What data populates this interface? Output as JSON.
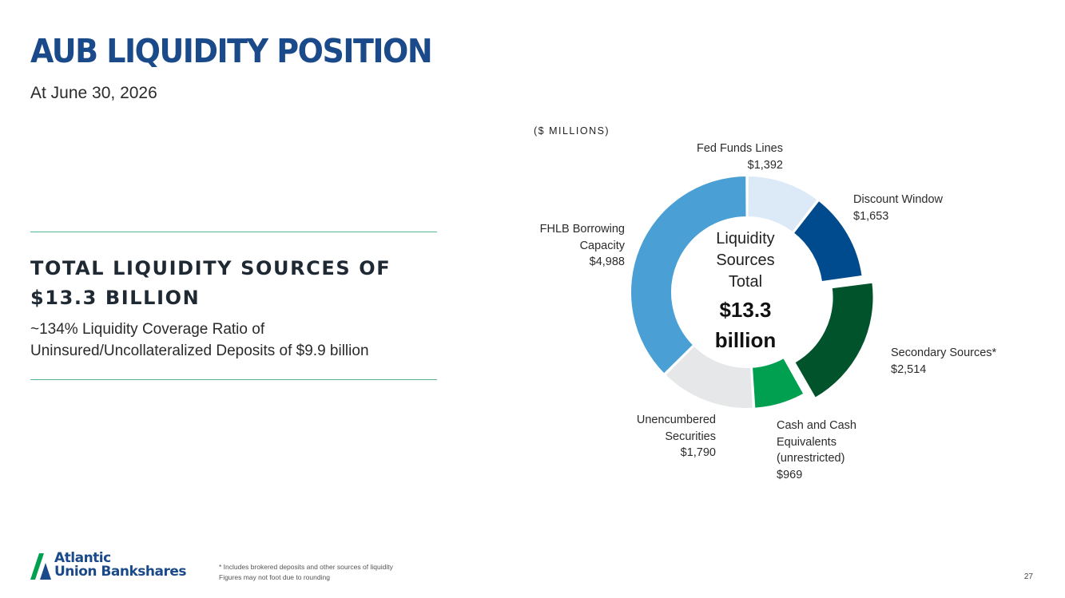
{
  "header": {
    "title": "AUB LIQUIDITY POSITION",
    "subtitle": "At June 30, 2026"
  },
  "summary": {
    "headline_line1": "TOTAL LIQUIDITY SOURCES OF",
    "headline_line2": "$13.3 BILLION",
    "ratio_line1": "~134% Liquidity Coverage Ratio of",
    "ratio_line2": "Uninsured/Uncollateralized Deposits of $9.9 billion"
  },
  "chart_data": {
    "type": "pie",
    "variant": "donut",
    "units_label": "($ MILLIONS)",
    "center": {
      "line1": "Liquidity",
      "line2": "Sources",
      "line3": "Total",
      "value_line1": "$13.3",
      "value_line2": "billion"
    },
    "slices": [
      {
        "name_lines": [
          "Fed Funds Lines"
        ],
        "value_label": "$1,392",
        "value": 1392,
        "color": "#dbeaf6",
        "exploded": false
      },
      {
        "name_lines": [
          "Discount Window"
        ],
        "value_label": "$1,653",
        "value": 1653,
        "color": "#004b8d",
        "exploded": false
      },
      {
        "name_lines": [
          "Secondary Sources*"
        ],
        "value_label": "$2,514",
        "value": 2514,
        "color": "#00532b",
        "exploded": true
      },
      {
        "name_lines": [
          "Cash and Cash",
          "Equivalents",
          "(unrestricted)"
        ],
        "value_label": "$969",
        "value": 969,
        "color": "#00a050",
        "exploded": false
      },
      {
        "name_lines": [
          "Unencumbered",
          "Securities"
        ],
        "value_label": "$1,790",
        "value": 1790,
        "color": "#e6e7e8",
        "exploded": false
      },
      {
        "name_lines": [
          "FHLB Borrowing",
          "Capacity"
        ],
        "value_label": "$4,988",
        "value": 4988,
        "color": "#4a9fd5",
        "exploded": false
      }
    ]
  },
  "footer": {
    "logo_line1": "Atlantic",
    "logo_line2": "Union Bankshares",
    "logo_color": "#1b4a8a",
    "logo_accent": "#00a050",
    "note1": "* Includes brokered deposits and other sources of liquidity",
    "note2": "Figures may not foot due to rounding",
    "page_number": "27"
  }
}
